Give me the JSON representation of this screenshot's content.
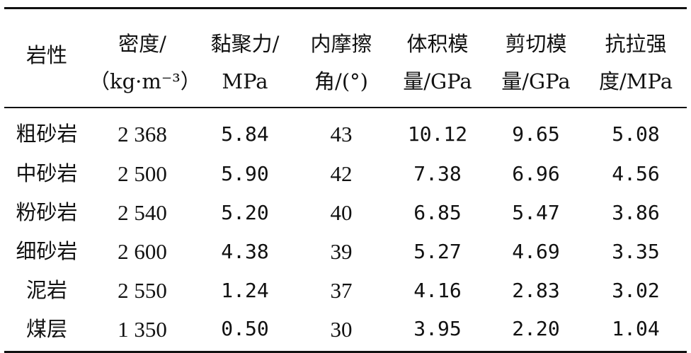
{
  "table": {
    "headers": [
      {
        "line1": "岩性",
        "line2": ""
      },
      {
        "line1": "密度/",
        "line2": "（kg·m⁻³）"
      },
      {
        "line1": "黏聚力/",
        "line2": "MPa"
      },
      {
        "line1": "内摩擦",
        "line2": "角/(°)"
      },
      {
        "line1": "体积模",
        "line2": "量/GPa"
      },
      {
        "line1": "剪切模",
        "line2": "量/GPa"
      },
      {
        "line1": "抗拉强",
        "line2": "度/MPa"
      }
    ],
    "rows": [
      [
        "粗砂岩",
        "2 368",
        "5.84",
        "43",
        "10.12",
        "9.65",
        "5.08"
      ],
      [
        "中砂岩",
        "2 500",
        "5.90",
        "42",
        "7.38",
        "6.96",
        "4.56"
      ],
      [
        "粉砂岩",
        "2 540",
        "5.20",
        "40",
        "6.85",
        "5.47",
        "3.86"
      ],
      [
        "细砂岩",
        "2 600",
        "4.38",
        "39",
        "5.27",
        "4.69",
        "3.35"
      ],
      [
        "泥岩",
        "2 550",
        "1.24",
        "37",
        "4.16",
        "2.83",
        "3.02"
      ],
      [
        "煤层",
        "1 350",
        "0.50",
        "30",
        "3.95",
        "2.20",
        "1.04"
      ]
    ]
  }
}
